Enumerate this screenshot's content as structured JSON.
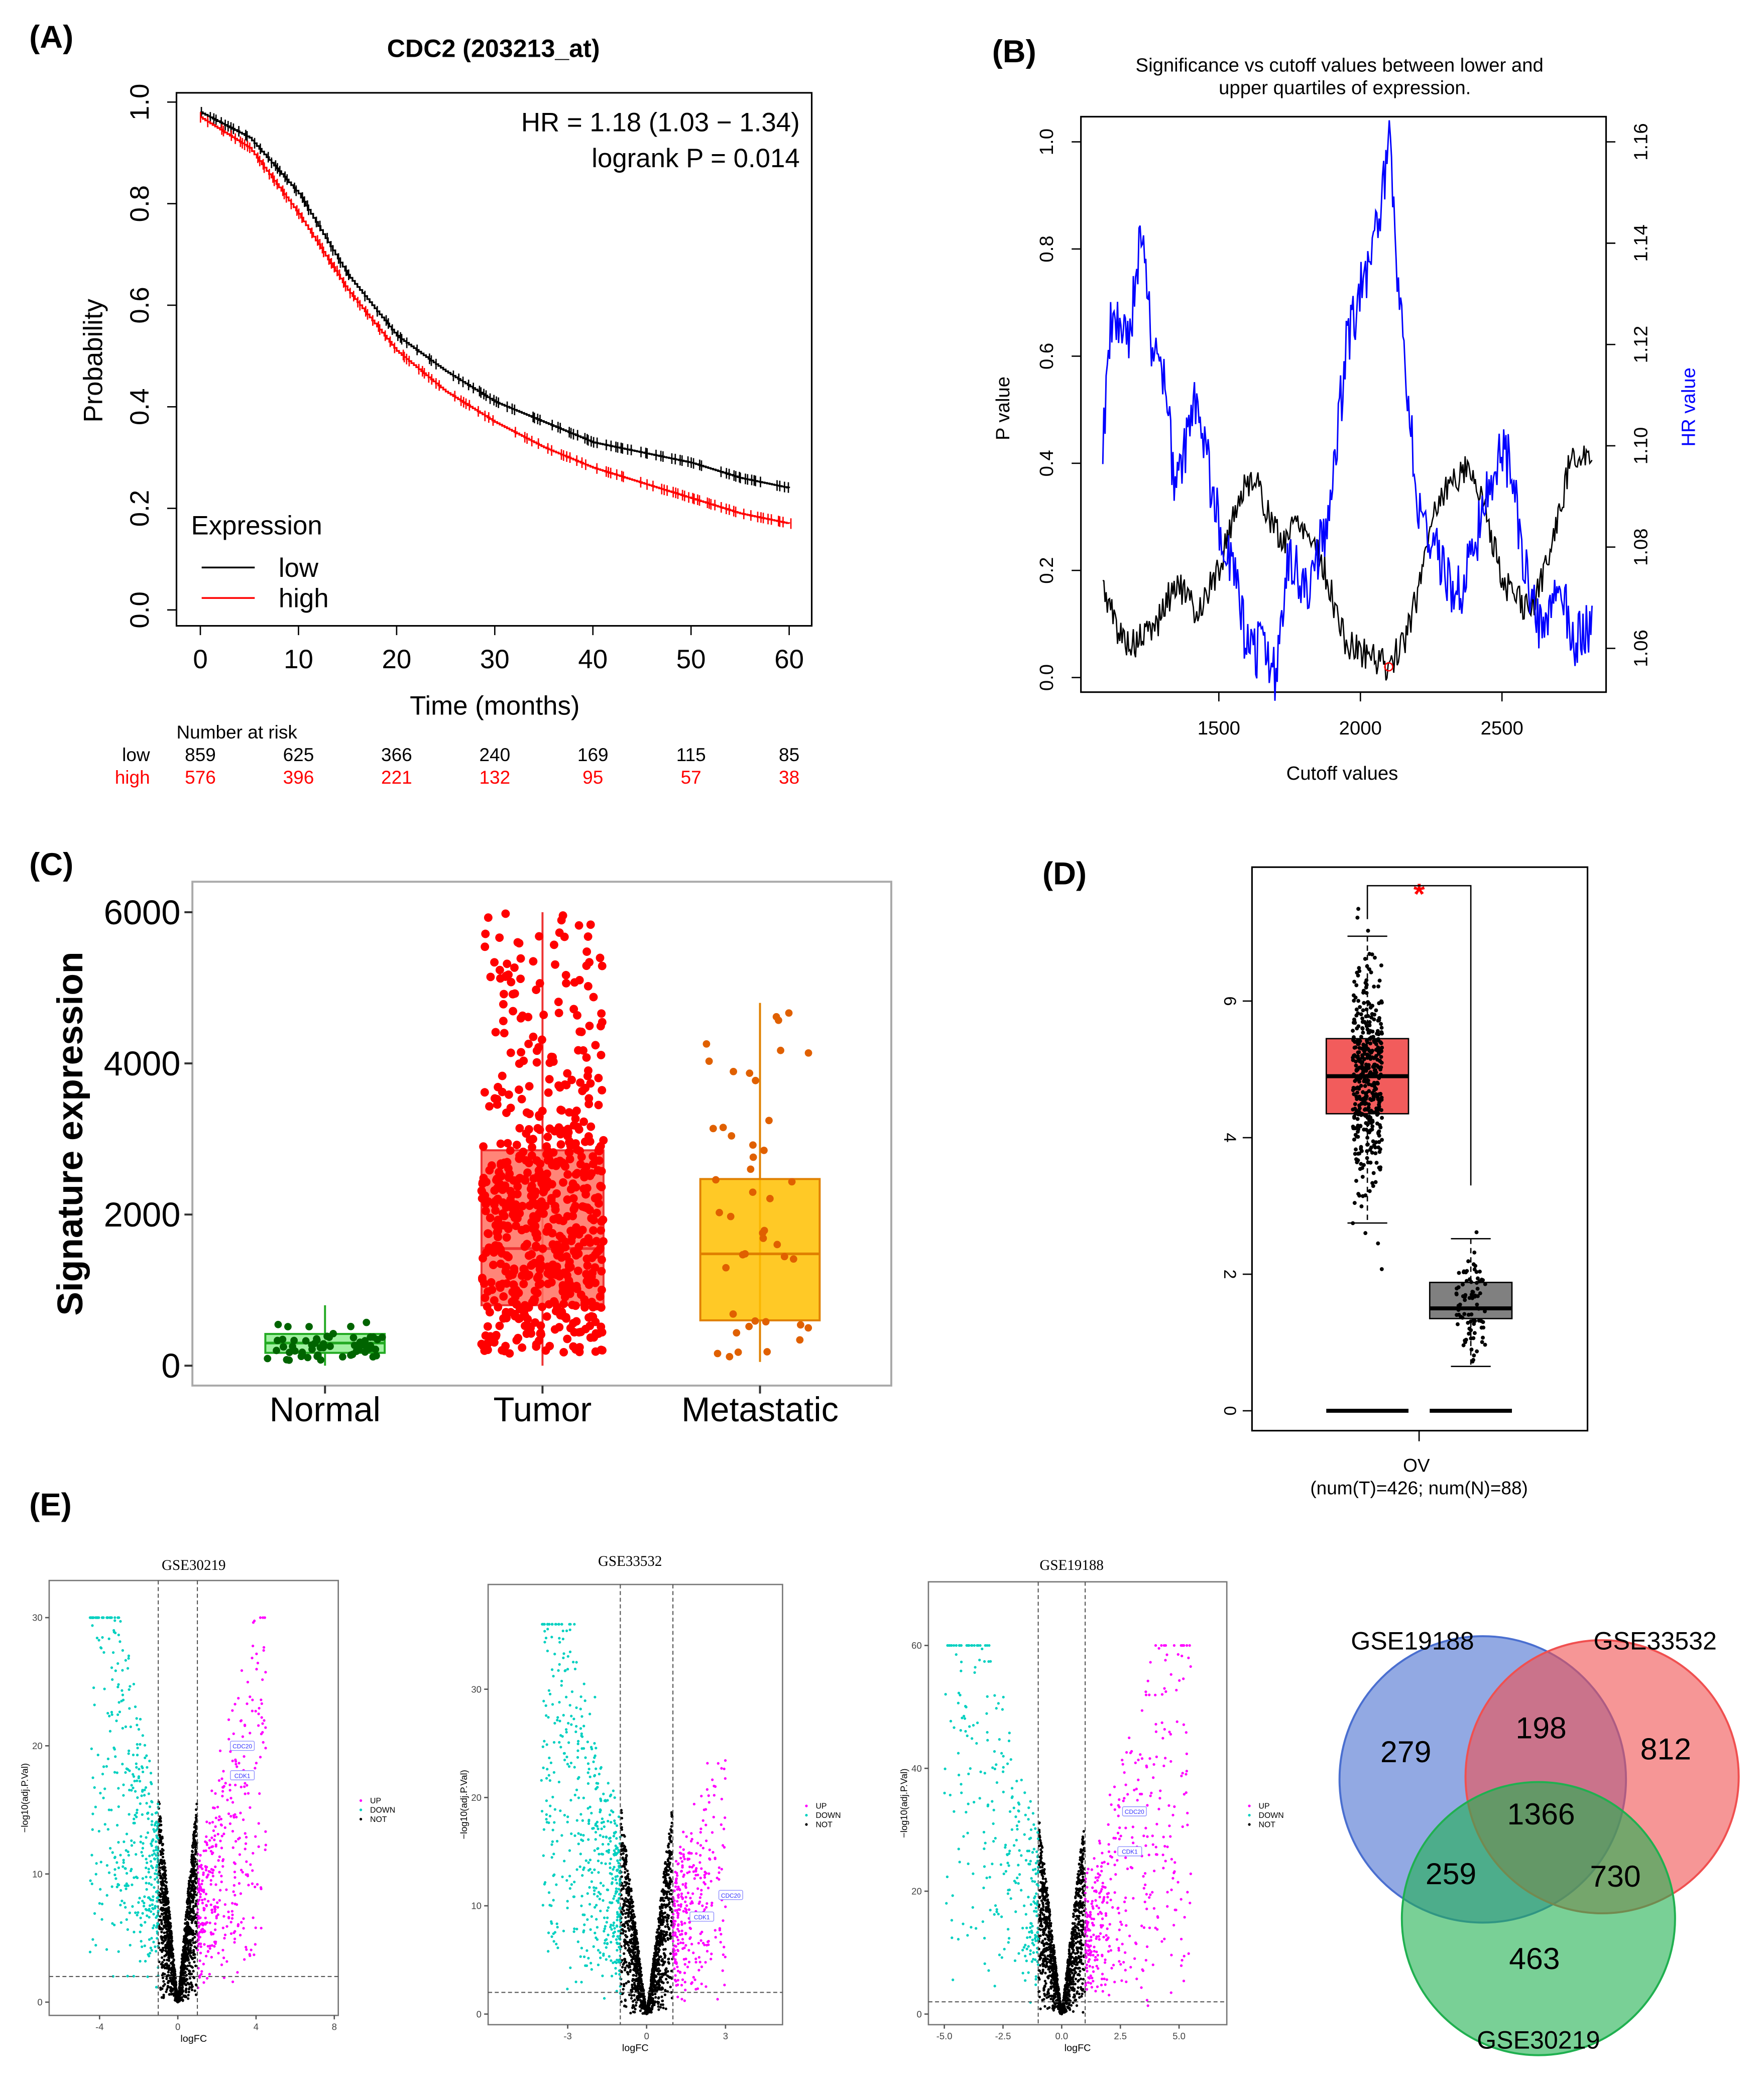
{
  "chart_data": [
    {
      "panel": "(A)",
      "type": "line",
      "title": "CDC2 (203213_at)",
      "xlabel": "Time (months)",
      "ylabel": "Probability",
      "xlim": [
        0,
        60
      ],
      "ylim": [
        0,
        1
      ],
      "xticks": [
        0,
        10,
        20,
        30,
        40,
        50,
        60
      ],
      "yticks": [
        "0.0",
        "0.2",
        "0.4",
        "0.6",
        "0.8",
        "1.0"
      ],
      "annotation": [
        "HR = 1.18 (1.03 − 1.34)",
        "logrank P = 0.014"
      ],
      "legend_title": "Expression",
      "legend_placement": "bottom-left",
      "series": [
        {
          "name": "low",
          "color": "#000000",
          "x": [
            0,
            5,
            10,
            15,
            20,
            25,
            30,
            35,
            40,
            45,
            50,
            55,
            60
          ],
          "y": [
            0.98,
            0.93,
            0.82,
            0.66,
            0.54,
            0.47,
            0.41,
            0.37,
            0.33,
            0.31,
            0.29,
            0.26,
            0.24
          ]
        },
        {
          "name": "high",
          "color": "#ff0000",
          "x": [
            0,
            5,
            10,
            15,
            20,
            25,
            30,
            35,
            40,
            45,
            50,
            55,
            60
          ],
          "y": [
            0.97,
            0.91,
            0.78,
            0.63,
            0.51,
            0.43,
            0.37,
            0.32,
            0.28,
            0.25,
            0.22,
            0.19,
            0.17
          ]
        }
      ],
      "risk_table": {
        "title": "Number at risk",
        "times": [
          0,
          10,
          20,
          30,
          40,
          50,
          60
        ],
        "rows": [
          {
            "label": "low",
            "color": "#000000",
            "values": [
              859,
              625,
              366,
              240,
              169,
              115,
              85
            ]
          },
          {
            "label": "high",
            "color": "#ff0000",
            "values": [
              576,
              396,
              221,
              132,
              95,
              57,
              38
            ]
          }
        ]
      }
    },
    {
      "panel": "(B)",
      "type": "line",
      "title": [
        "Significance vs cutoff values between lower and",
        "upper quartiles of expression."
      ],
      "xlabel": "Cutoff values",
      "ylabel": "P value",
      "y2label": "HR value",
      "xlim": [
        1090,
        2820
      ],
      "ylim": [
        0,
        1
      ],
      "y2lim": [
        1.06,
        1.16
      ],
      "xticks": [
        1500,
        2000,
        2500
      ],
      "yticks": [
        "0.0",
        "0.2",
        "0.4",
        "0.6",
        "0.8",
        "1.0"
      ],
      "y2ticks": [
        "1.06",
        "1.08",
        "1.10",
        "1.12",
        "1.14",
        "1.16"
      ],
      "series": [
        {
          "name": "P value",
          "color": "#000000",
          "x": [
            1090,
            1150,
            1200,
            1280,
            1350,
            1420,
            1500,
            1560,
            1620,
            1680,
            1720,
            1780,
            1850,
            1900,
            1950,
            2000,
            2050,
            2090,
            2150,
            2200,
            2250,
            2300,
            2380,
            2450,
            2500,
            2550,
            2600,
            2650,
            2700,
            2750,
            2800
          ],
          "y": [
            0.17,
            0.08,
            0.06,
            0.1,
            0.18,
            0.12,
            0.2,
            0.32,
            0.38,
            0.3,
            0.25,
            0.3,
            0.24,
            0.15,
            0.06,
            0.05,
            0.04,
            0.02,
            0.06,
            0.15,
            0.3,
            0.35,
            0.4,
            0.3,
            0.18,
            0.15,
            0.12,
            0.2,
            0.3,
            0.43,
            0.4
          ]
        },
        {
          "name": "HR value",
          "color": "#0000ff",
          "x": [
            1090,
            1120,
            1180,
            1230,
            1260,
            1300,
            1350,
            1420,
            1480,
            1550,
            1600,
            1650,
            1700,
            1750,
            1800,
            1860,
            1900,
            1950,
            2000,
            2050,
            2100,
            2150,
            2200,
            2250,
            2300,
            2350,
            2400,
            2500,
            2530,
            2600,
            2650,
            2700,
            2750,
            2800
          ],
          "y": [
            1.1,
            1.125,
            1.12,
            1.145,
            1.12,
            1.115,
            1.09,
            1.11,
            1.09,
            1.075,
            1.06,
            1.06,
            1.055,
            1.08,
            1.07,
            1.08,
            1.09,
            1.12,
            1.13,
            1.14,
            1.16,
            1.12,
            1.09,
            1.08,
            1.075,
            1.07,
            1.08,
            1.1,
            1.095,
            1.07,
            1.06,
            1.075,
            1.06,
            1.065
          ]
        }
      ],
      "highlight": {
        "x": 2100,
        "y": 0.02,
        "color": "#ff0000"
      }
    },
    {
      "panel": "(C)",
      "type": "box",
      "ylabel": "Signature expression",
      "ylim": [
        0,
        6000
      ],
      "yticks": [
        0,
        2000,
        4000,
        6000
      ],
      "categories": [
        "Normal",
        "Tumor",
        "Metastatic"
      ],
      "boxes": [
        {
          "name": "Normal",
          "min": 0,
          "q1": 170,
          "median": 300,
          "q3": 420,
          "max": 800,
          "fill": "#90ee90",
          "stroke": "#22aa22",
          "point": "#006400",
          "n_points": 60
        },
        {
          "name": "Tumor",
          "min": 0,
          "q1": 800,
          "median": 1550,
          "q3": 2850,
          "max": 6000,
          "fill": "#ff7060",
          "stroke": "#ee3333",
          "point": "#ff0000",
          "n_points": 650
        },
        {
          "name": "Metastatic",
          "min": 50,
          "q1": 600,
          "median": 1480,
          "q3": 2470,
          "max": 4800,
          "fill": "#ffc000",
          "stroke": "#e08000",
          "point": "#e06000",
          "n_points": 45
        }
      ]
    },
    {
      "panel": "(D)",
      "type": "box",
      "xlabel": "OV",
      "xsublabel": "(num(T)=426; num(N)=88)",
      "ylim": [
        0,
        7.3
      ],
      "yticks": [
        0,
        2,
        4,
        6
      ],
      "significance": "*",
      "boxes": [
        {
          "name": "Tumor",
          "min": 2.75,
          "q1": 4.35,
          "median": 4.9,
          "q3": 5.45,
          "max": 6.95,
          "fill": "#f25c5c",
          "n_points": 426
        },
        {
          "name": "Normal",
          "min": 0.65,
          "q1": 1.35,
          "median": 1.5,
          "q3": 1.88,
          "max": 2.52,
          "fill": "#808080",
          "n_points": 88
        }
      ]
    },
    {
      "panel": "(E)",
      "type": "scatter",
      "title": "GSE30219",
      "xlabel": "logFC",
      "ylabel": "−log10(adj.P.Val)",
      "xlim": [
        -6.5,
        8.3
      ],
      "ylim": [
        -1,
        32
      ],
      "xticks": [
        -4,
        0,
        4,
        8
      ],
      "yticks": [
        0,
        10,
        20,
        30
      ],
      "logfc_threshold": 1,
      "p_threshold_line": 2,
      "legend": [
        {
          "name": "UP",
          "color": "#ff00ff"
        },
        {
          "name": "DOWN",
          "color": "#00d0c0"
        },
        {
          "name": "NOT",
          "color": "#000000"
        }
      ],
      "labels": [
        {
          "text": "CDC20",
          "x": 3.3,
          "y": 20
        },
        {
          "text": "CDK1",
          "x": 3.3,
          "y": 17.7
        }
      ]
    },
    {
      "panel": "(E)",
      "type": "scatter",
      "title": "GSE33532",
      "xlabel": "logFC",
      "ylabel": "−log10(adj.P.Val)",
      "xlim": [
        -4.3,
        4.0
      ],
      "ylim": [
        -1,
        40
      ],
      "xticks": [
        -3,
        0,
        3
      ],
      "yticks": [
        0,
        10,
        20,
        30
      ],
      "logfc_threshold": 1,
      "p_threshold_line": 2,
      "legend": [
        {
          "name": "UP",
          "color": "#ff00ff"
        },
        {
          "name": "DOWN",
          "color": "#00d0c0"
        },
        {
          "name": "NOT",
          "color": "#000000"
        }
      ],
      "labels": [
        {
          "text": "CDC20",
          "x": 3.2,
          "y": 11
        },
        {
          "text": "CDK1",
          "x": 2.1,
          "y": 9
        }
      ]
    },
    {
      "panel": "(E)",
      "type": "scatter",
      "title": "GSE19188",
      "xlabel": "logFC",
      "ylabel": "−log10(adj.P.Val)",
      "xlim": [
        -5.7,
        7.0
      ],
      "ylim": [
        -2,
        70
      ],
      "xticks": [
        "-5.0",
        "-2.5",
        "0.0",
        "2.5",
        "5.0"
      ],
      "yticks": [
        0,
        20,
        40,
        60
      ],
      "logfc_threshold": 1,
      "p_threshold_line": 2,
      "legend": [
        {
          "name": "UP",
          "color": "#ff00ff"
        },
        {
          "name": "DOWN",
          "color": "#00d0c0"
        },
        {
          "name": "NOT",
          "color": "#000000"
        }
      ],
      "labels": [
        {
          "text": "CDC20",
          "x": 3.1,
          "y": 33
        },
        {
          "text": "CDK1",
          "x": 2.9,
          "y": 26.5
        }
      ]
    },
    {
      "panel": "(E)",
      "type": "venn",
      "sets": [
        {
          "name": "GSE19188",
          "color": "#4a6fd0"
        },
        {
          "name": "GSE33532",
          "color": "#f05050"
        },
        {
          "name": "GSE30219",
          "color": "#20b050"
        }
      ],
      "regions": {
        "GSE19188_only": 279,
        "GSE33532_only": 812,
        "GSE30219_only": 463,
        "GSE19188_GSE33532": 198,
        "GSE19188_GSE30219": 259,
        "GSE33532_GSE30219": 730,
        "all": 1366
      }
    }
  ]
}
